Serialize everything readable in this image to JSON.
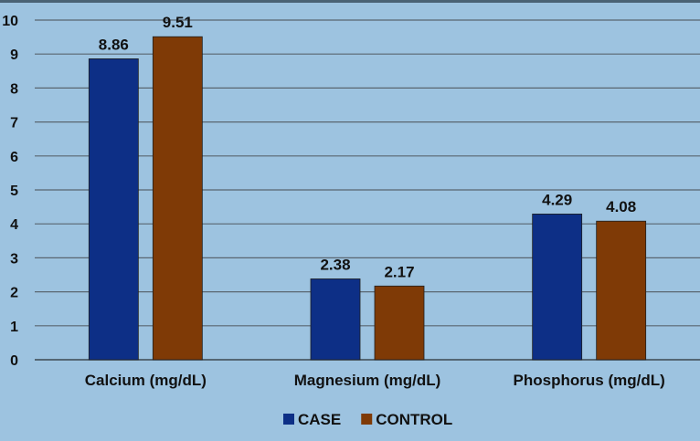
{
  "chart_data": {
    "type": "bar",
    "title": "",
    "xlabel": "",
    "ylabel": "",
    "categories": [
      "Calcium (mg/dL)",
      "Magnesium (mg/dL)",
      "Phosphorus  (mg/dL)"
    ],
    "series": [
      {
        "name": "CASE",
        "values": [
          8.86,
          2.38,
          4.29
        ],
        "color": "#0d2f86"
      },
      {
        "name": "CONTROL",
        "values": [
          9.51,
          2.17,
          4.08
        ],
        "color": "#7f3a06"
      }
    ],
    "ylim": [
      0,
      10
    ],
    "yticks": [
      0,
      1,
      2,
      3,
      4,
      5,
      6,
      7,
      8,
      9,
      10
    ],
    "grid": true,
    "legend": "bottom-center",
    "data_labels": true
  }
}
